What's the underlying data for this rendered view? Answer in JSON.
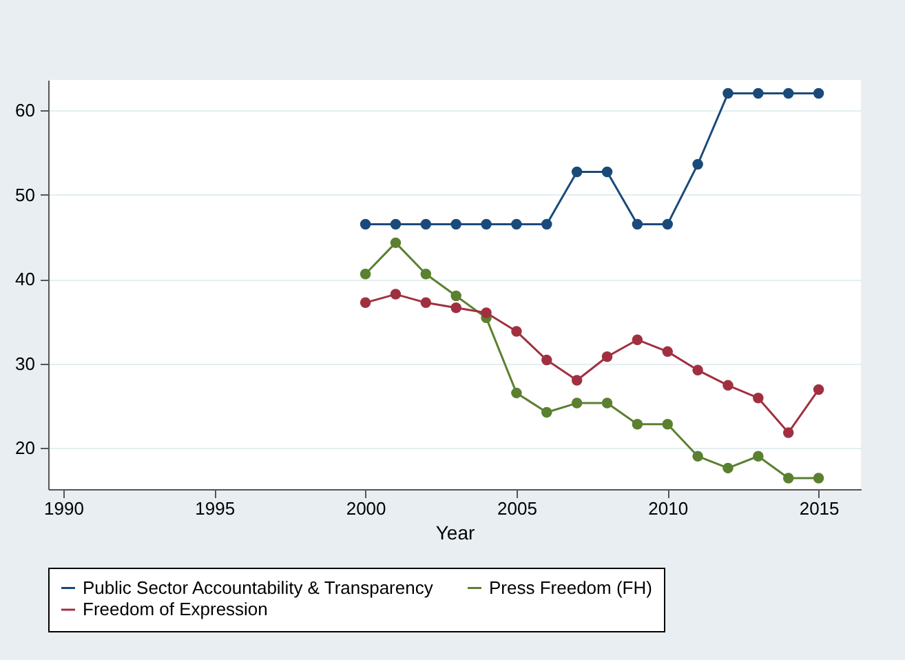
{
  "chart_data": {
    "type": "line",
    "xlabel": "Year",
    "x": [
      2000,
      2001,
      2002,
      2003,
      2004,
      2005,
      2006,
      2007,
      2008,
      2009,
      2010,
      2011,
      2012,
      2013,
      2014,
      2015
    ],
    "series": [
      {
        "name": "Public Sector Accountability & Transparency",
        "color": "#1a4a7a",
        "values": [
          46.5,
          46.5,
          46.5,
          46.5,
          46.5,
          46.5,
          46.5,
          52.7,
          52.7,
          46.5,
          46.5,
          53.6,
          62,
          62,
          62,
          62
        ]
      },
      {
        "name": "Press Freedom (FH)",
        "color": "#5a8030",
        "values": [
          40.6,
          44.3,
          40.6,
          38,
          35.4,
          26.5,
          24.2,
          25.3,
          25.3,
          22.8,
          22.8,
          19,
          17.6,
          19,
          16.4,
          16.4
        ]
      },
      {
        "name": "Freedom of Expression",
        "color": "#a03040",
        "values": [
          37.2,
          38.2,
          37.2,
          36.6,
          36,
          33.8,
          30.4,
          28,
          30.8,
          32.8,
          31.4,
          29.2,
          27.4,
          25.9,
          21.8,
          26.9
        ]
      }
    ],
    "xlim": [
      1989.5,
      2016.4
    ],
    "xticks": [
      1990,
      1995,
      2000,
      2005,
      2010,
      2015
    ],
    "ylim": [
      15.1,
      63.6
    ],
    "yticks": [
      20,
      30,
      40,
      50,
      60
    ],
    "grid": "y",
    "legend": "bottom",
    "marker": "circle",
    "line_style": "solid"
  }
}
